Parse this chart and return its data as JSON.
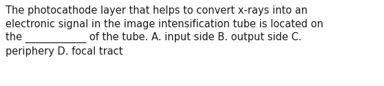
{
  "text_line1": "The photocathode layer that helps to convert x-rays into an",
  "text_line2": "electronic signal in the image intensification tube is located on",
  "text_line3": "the ____________ of the tube. A. input side B. output side C.",
  "text_line4": "periphery D. focal tract",
  "background_color": "#ffffff",
  "text_color": "#1a1a1a",
  "font_size": 10.5,
  "fig_width": 5.58,
  "fig_height": 1.26,
  "dpi": 100
}
